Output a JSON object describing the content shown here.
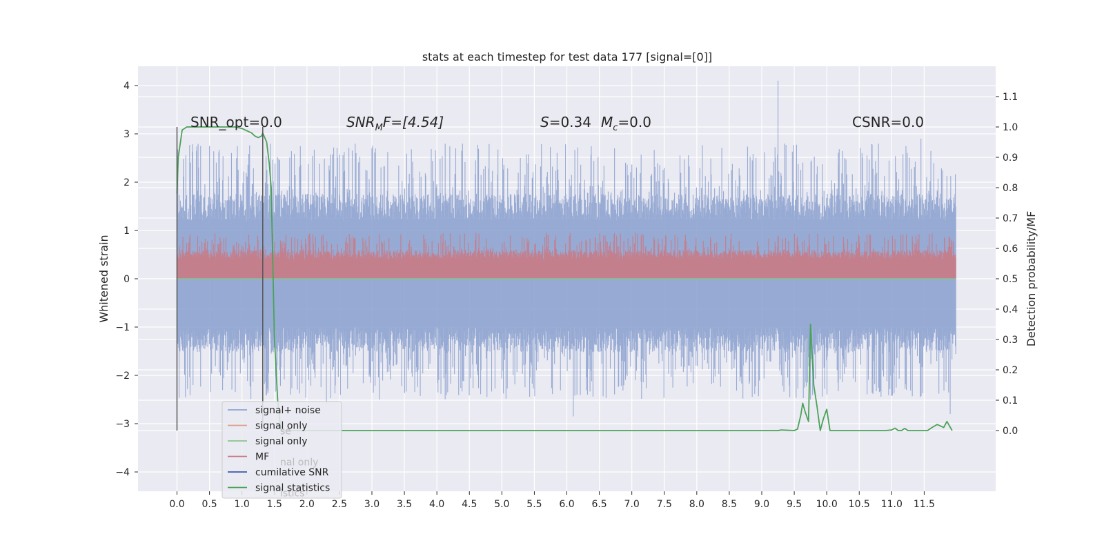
{
  "chart_data": {
    "type": "line",
    "title": "stats at each timestep for test data 177 [signal=[0]]",
    "ylabel_left": "Whitened strain",
    "ylabel_right": "Detection probability/MF",
    "xlim": [
      -0.6,
      12.6
    ],
    "ylim_left": [
      -4.4,
      4.4
    ],
    "ylim_right": [
      -0.2,
      1.2
    ],
    "x_ticks": [
      "0.0",
      "0.5",
      "1.0",
      "1.5",
      "2.0",
      "2.5",
      "3.0",
      "3.5",
      "4.0",
      "4.5",
      "5.0",
      "5.5",
      "6.0",
      "6.5",
      "7.0",
      "7.5",
      "8.0",
      "8.5",
      "9.0",
      "9.5",
      "10.0",
      "10.5",
      "11.0",
      "11.5"
    ],
    "y_ticks_left": [
      "4",
      "3",
      "2",
      "1",
      "0",
      "−1",
      "−2",
      "−3",
      "−4"
    ],
    "y_ticks_right": [
      "1.1",
      "1.0",
      "0.9",
      "0.8",
      "0.7",
      "0.6",
      "0.5",
      "0.4",
      "0.3",
      "0.2",
      "0.1",
      "0.0"
    ],
    "grid": true,
    "annotations": {
      "snr_opt": "SNR_opt=0.0",
      "snr_mf_prefix": "SNR",
      "snr_mf_sub": "M",
      "snr_mf_suffix": "F=[4.54]",
      "s_label": "S",
      "s_value": "=0.34",
      "mc_label": "M",
      "mc_sub": "c",
      "mc_value": "=0.0",
      "csnr": "CSNR=0.0"
    },
    "vertical_markers_x": [
      0.0,
      1.32
    ],
    "legend_position": "lower-left",
    "legend": [
      {
        "label": "signal+ noise",
        "color": "#8ea3cf",
        "ghost": ""
      },
      {
        "label": "signal only",
        "color": "#dd9e88",
        "ghost": "se"
      },
      {
        "label": "signal only",
        "color": "#88c48e",
        "ghost": ""
      },
      {
        "label": "MF",
        "color": "#c97a85",
        "ghost": "nal only"
      },
      {
        "label": "cumilative SNR",
        "color": "#3b5aa8",
        "ghost": ""
      },
      {
        "label": "signal statistics",
        "color": "#4aa258",
        "ghost": "istics"
      }
    ],
    "series": [
      {
        "name": "signal+ noise",
        "color": "#8ea3cf",
        "axis": "left",
        "style": "noise",
        "x_range": [
          0.0,
          11.99
        ],
        "approx_upper": [
          1.2,
          2.8
        ],
        "approx_lower": [
          -1.0,
          -2.5
        ],
        "peaks": [
          [
            0.5,
            2.75
          ],
          [
            9.25,
            4.1
          ],
          [
            11.45,
            2.9
          ],
          [
            10.62,
            2.55
          ],
          [
            3.0,
            2.7
          ],
          [
            5.98,
            2.55
          ]
        ],
        "troughs": [
          [
            6.1,
            -2.85
          ],
          [
            2.3,
            -2.6
          ],
          [
            9.75,
            -2.5
          ],
          [
            11.9,
            -2.8
          ]
        ]
      },
      {
        "name": "MF",
        "color": "#c97a85",
        "axis": "left",
        "style": "noise",
        "x_range": [
          0.0,
          11.99
        ],
        "approx_upper": [
          0.4,
          0.95
        ],
        "approx_lower": [
          0.0,
          0.0
        ]
      },
      {
        "name": "signal only",
        "color": "#88c48e",
        "axis": "left",
        "x": [
          0.0,
          11.99
        ],
        "y": [
          0.0,
          0.0
        ]
      },
      {
        "name": "signal statistics",
        "color": "#4aa258",
        "axis": "right",
        "x": [
          0.0,
          0.02,
          0.08,
          0.15,
          0.3,
          0.5,
          0.7,
          0.9,
          1.0,
          1.1,
          1.15,
          1.2,
          1.25,
          1.3,
          1.32,
          1.38,
          1.42,
          1.45,
          1.5,
          1.55,
          1.6,
          2.0,
          3.0,
          4.0,
          5.0,
          6.0,
          7.0,
          8.0,
          9.0,
          9.25,
          9.3,
          9.5,
          9.55,
          9.6,
          9.63,
          9.67,
          9.72,
          9.75,
          9.8,
          9.85,
          9.9,
          9.95,
          10.0,
          10.05,
          10.1,
          10.3,
          10.6,
          10.9,
          11.0,
          11.05,
          11.1,
          11.15,
          11.2,
          11.25,
          11.3,
          11.45,
          11.55,
          11.62,
          11.7,
          11.8,
          11.85,
          11.93
        ],
        "y": [
          0.78,
          0.9,
          0.99,
          1.0,
          1.0,
          1.0,
          1.0,
          1.0,
          0.995,
          0.985,
          0.98,
          0.97,
          0.965,
          0.97,
          0.98,
          0.95,
          0.88,
          0.8,
          0.3,
          0.1,
          0.0,
          0.0,
          0.0,
          0.0,
          0.0,
          0.0,
          0.0,
          0.0,
          0.0,
          0.0,
          0.002,
          0.0,
          0.005,
          0.05,
          0.09,
          0.06,
          0.03,
          0.35,
          0.15,
          0.08,
          0.0,
          0.04,
          0.07,
          0.0,
          0.0,
          0.0,
          0.0,
          0.0,
          0.002,
          0.008,
          0.0,
          0.0,
          0.007,
          0.0,
          0.0,
          0.0,
          0.0,
          0.01,
          0.02,
          0.01,
          0.03,
          0.0
        ]
      },
      {
        "name": "cumilative SNR",
        "color": "#3b5aa8",
        "axis": "left",
        "x": [],
        "y": []
      }
    ]
  }
}
